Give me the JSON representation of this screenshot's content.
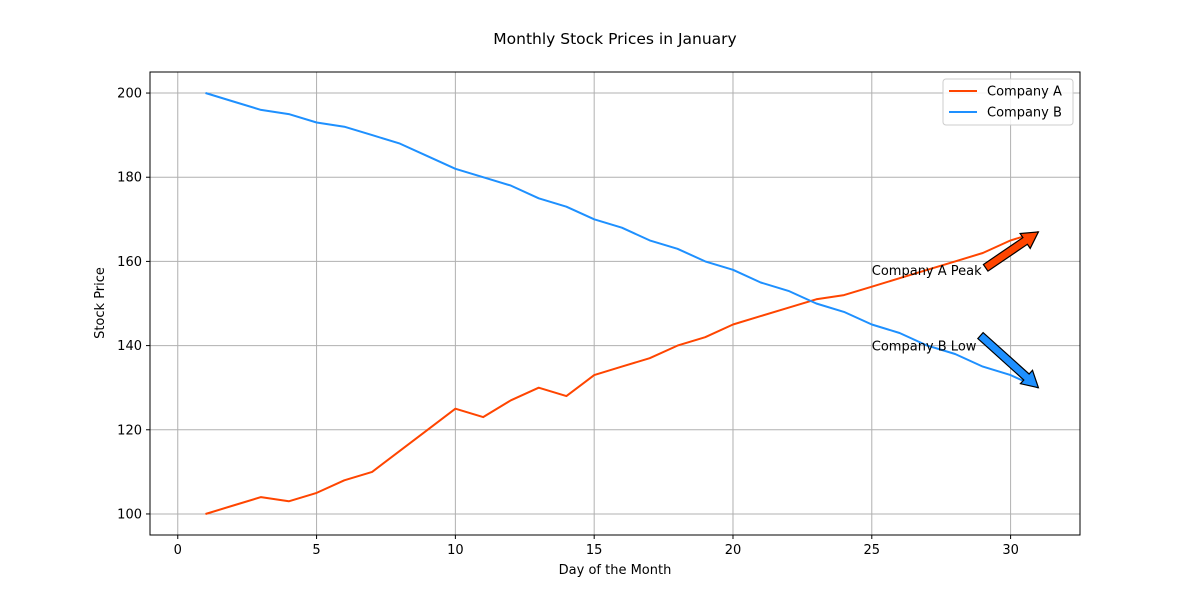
{
  "chart_data": {
    "type": "line",
    "title": "Monthly Stock Prices in January",
    "xlabel": "Day of the Month",
    "ylabel": "Stock Price",
    "xlim": [
      -1,
      32.5
    ],
    "ylim": [
      95,
      205
    ],
    "xticks": [
      0,
      5,
      10,
      15,
      20,
      25,
      30
    ],
    "yticks": [
      100,
      120,
      140,
      160,
      180,
      200
    ],
    "grid": true,
    "legend": "top-right",
    "x": [
      1,
      2,
      3,
      4,
      5,
      6,
      7,
      8,
      9,
      10,
      11,
      12,
      13,
      14,
      15,
      16,
      17,
      18,
      19,
      20,
      21,
      22,
      23,
      24,
      25,
      26,
      27,
      28,
      29,
      30,
      31
    ],
    "series": [
      {
        "name": "Company A",
        "color": "#ff4500",
        "values": [
          100,
          102,
          104,
          103,
          105,
          108,
          110,
          115,
          120,
          125,
          123,
          127,
          130,
          128,
          133,
          135,
          137,
          140,
          142,
          145,
          147,
          149,
          151,
          152,
          154,
          156,
          158,
          160,
          162,
          165,
          167
        ]
      },
      {
        "name": "Company B",
        "color": "#1e90ff",
        "values": [
          200,
          198,
          196,
          195,
          193,
          192,
          190,
          188,
          185,
          182,
          180,
          178,
          175,
          173,
          170,
          168,
          165,
          163,
          160,
          158,
          155,
          153,
          150,
          148,
          145,
          143,
          140,
          138,
          135,
          133,
          130
        ]
      }
    ],
    "annotations": [
      {
        "text": "Company A Peak",
        "text_at": [
          25,
          158
        ],
        "arrow_to": [
          31,
          167
        ],
        "color": "#ff4500"
      },
      {
        "text": "Company B Low",
        "text_at": [
          25,
          140
        ],
        "arrow_to": [
          31,
          130
        ],
        "color": "#1e90ff"
      }
    ]
  }
}
